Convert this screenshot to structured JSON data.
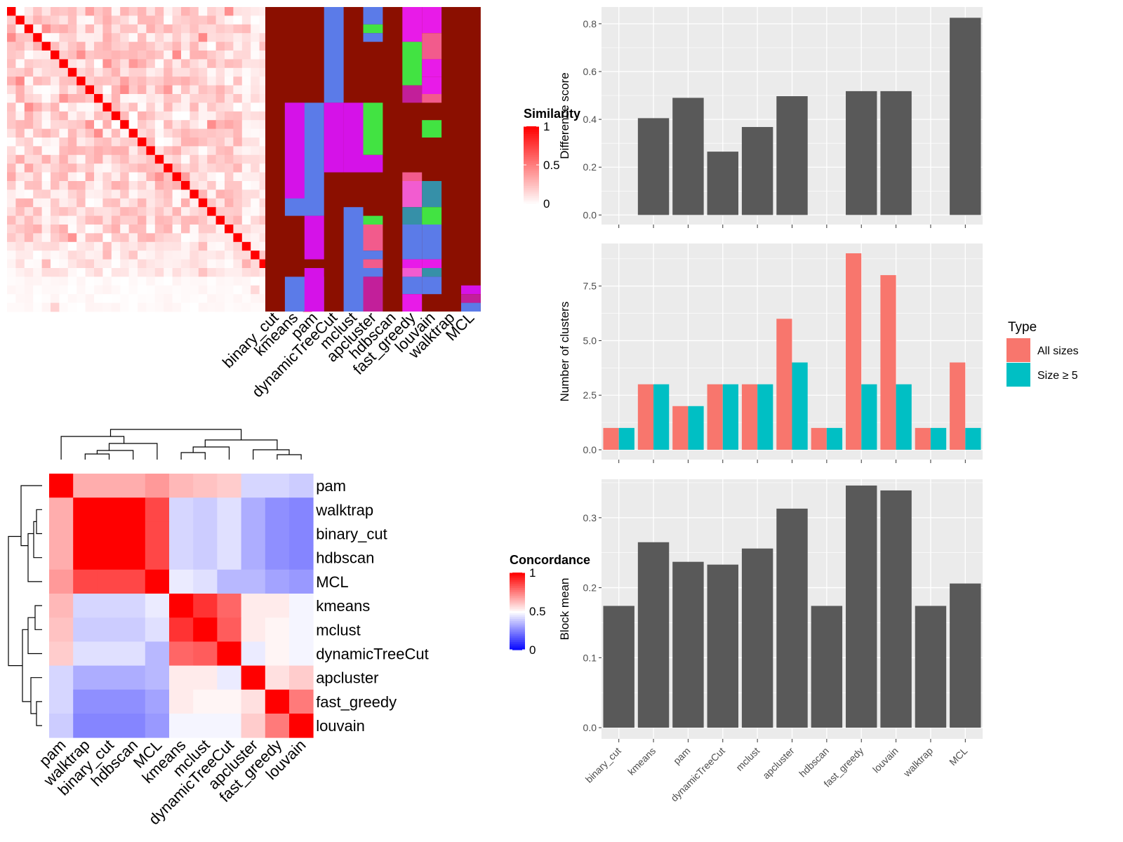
{
  "methods": [
    "binary_cut",
    "kmeans",
    "pam",
    "dynamicTreeCut",
    "mclust",
    "apcluster",
    "hdbscan",
    "fast_greedy",
    "louvain",
    "walktrap",
    "MCL"
  ],
  "similarity_legend": {
    "title": "Similarity",
    "ticks": [
      "1",
      "0.5",
      "0"
    ]
  },
  "concordance_legend": {
    "title": "Concordance",
    "ticks": [
      "1",
      "0.5",
      "0"
    ]
  },
  "colors": {
    "cluster_bg": "#8B0F00",
    "palette": [
      "#5B7BE8",
      "#D512E8",
      "#E81BE8",
      "#42E342",
      "#F25B8C",
      "#C21F9A",
      "#3690A8",
      "#F25CD0"
    ],
    "bar_gray": "#595959",
    "all_sizes": "#F8766D",
    "size_ge_5": "#00BFC4",
    "panel_bg": "#EBEBEB"
  },
  "chart_data": [
    {
      "type": "heatmap",
      "name": "term similarity heatmap with cluster annotation",
      "n_terms": 35,
      "legend_title": "Similarity",
      "column_labels": [
        "binary_cut",
        "kmeans",
        "pam",
        "dynamicTreeCut",
        "mclust",
        "apcluster",
        "hdbscan",
        "fast_greedy",
        "louvain",
        "walktrap",
        "MCL"
      ]
    },
    {
      "type": "heatmap",
      "name": "method concordance",
      "legend_title": "Concordance",
      "row_labels": [
        "pam",
        "walktrap",
        "binary_cut",
        "hdbscan",
        "MCL",
        "kmeans",
        "mclust",
        "dynamicTreeCut",
        "apcluster",
        "fast_greedy",
        "louvain"
      ],
      "col_labels": [
        "pam",
        "walktrap",
        "binary_cut",
        "hdbscan",
        "MCL",
        "kmeans",
        "mclust",
        "dynamicTreeCut",
        "apcluster",
        "fast_greedy",
        "louvain"
      ],
      "values": [
        [
          1.0,
          0.66,
          0.66,
          0.66,
          0.7,
          0.64,
          0.62,
          0.6,
          0.42,
          0.42,
          0.4
        ],
        [
          0.66,
          1.0,
          1.0,
          1.0,
          0.86,
          0.42,
          0.4,
          0.44,
          0.34,
          0.28,
          0.26
        ],
        [
          0.66,
          1.0,
          1.0,
          1.0,
          0.86,
          0.42,
          0.4,
          0.44,
          0.34,
          0.28,
          0.26
        ],
        [
          0.66,
          1.0,
          1.0,
          1.0,
          0.86,
          0.42,
          0.4,
          0.44,
          0.34,
          0.28,
          0.26
        ],
        [
          0.7,
          0.86,
          0.86,
          0.86,
          1.0,
          0.46,
          0.44,
          0.36,
          0.36,
          0.32,
          0.3
        ],
        [
          0.64,
          0.42,
          0.42,
          0.42,
          0.46,
          1.0,
          0.9,
          0.8,
          0.54,
          0.54,
          0.48
        ],
        [
          0.62,
          0.4,
          0.4,
          0.4,
          0.44,
          0.9,
          1.0,
          0.82,
          0.54,
          0.52,
          0.48
        ],
        [
          0.6,
          0.44,
          0.44,
          0.44,
          0.36,
          0.8,
          0.82,
          1.0,
          0.46,
          0.52,
          0.48
        ],
        [
          0.42,
          0.34,
          0.34,
          0.34,
          0.36,
          0.54,
          0.54,
          0.46,
          1.0,
          0.56,
          0.6
        ],
        [
          0.42,
          0.28,
          0.28,
          0.28,
          0.32,
          0.54,
          0.52,
          0.52,
          0.56,
          1.0,
          0.76
        ],
        [
          0.4,
          0.26,
          0.26,
          0.26,
          0.3,
          0.48,
          0.48,
          0.48,
          0.6,
          0.76,
          1.0
        ]
      ],
      "ticks": {
        "min": 0,
        "mid": 0.5,
        "max": 1
      }
    },
    {
      "type": "bar",
      "name": "difference score",
      "ylabel": "Difference score",
      "categories": [
        "binary_cut",
        "kmeans",
        "pam",
        "dynamicTreeCut",
        "mclust",
        "apcluster",
        "hdbscan",
        "fast_greedy",
        "louvain",
        "walktrap",
        "MCL"
      ],
      "values": [
        0,
        0.405,
        0.49,
        0.265,
        0.368,
        0.497,
        0,
        0.518,
        0.518,
        0,
        0.825
      ],
      "ylim": [
        -0.04,
        0.87
      ],
      "yticks": [
        0.0,
        0.2,
        0.4,
        0.6,
        0.8
      ],
      "ytick_labels": [
        "0.0",
        "0.2",
        "0.4",
        "0.6",
        "0.8"
      ],
      "grid": true
    },
    {
      "type": "bar",
      "name": "number of clusters",
      "ylabel": "Number of clusters",
      "categories": [
        "binary_cut",
        "kmeans",
        "pam",
        "dynamicTreeCut",
        "mclust",
        "apcluster",
        "hdbscan",
        "fast_greedy",
        "louvain",
        "walktrap",
        "MCL"
      ],
      "series": [
        {
          "name": "All sizes",
          "values": [
            1,
            3,
            2,
            3,
            3,
            6,
            1,
            9,
            8,
            1,
            4
          ]
        },
        {
          "name": "Size ≥ 5",
          "values": [
            1,
            3,
            2,
            3,
            3,
            4,
            1,
            3,
            3,
            1,
            1
          ]
        }
      ],
      "ylim": [
        -0.45,
        9.45
      ],
      "yticks": [
        0.0,
        2.5,
        5.0,
        7.5
      ],
      "ytick_labels": [
        "0.0",
        "2.5",
        "5.0",
        "7.5"
      ],
      "legend": {
        "title": "Type",
        "position": "right"
      },
      "grid": true
    },
    {
      "type": "bar",
      "name": "block mean",
      "ylabel": "Block mean",
      "categories": [
        "binary_cut",
        "kmeans",
        "pam",
        "dynamicTreeCut",
        "mclust",
        "apcluster",
        "hdbscan",
        "fast_greedy",
        "louvain",
        "walktrap",
        "MCL"
      ],
      "values": [
        0.174,
        0.265,
        0.237,
        0.233,
        0.256,
        0.313,
        0.174,
        0.346,
        0.339,
        0.174,
        0.206
      ],
      "ylim": [
        -0.016,
        0.355
      ],
      "yticks": [
        0.0,
        0.1,
        0.2,
        0.3
      ],
      "ytick_labels": [
        "0.0",
        "0.1",
        "0.2",
        "0.3"
      ],
      "grid": true
    }
  ]
}
